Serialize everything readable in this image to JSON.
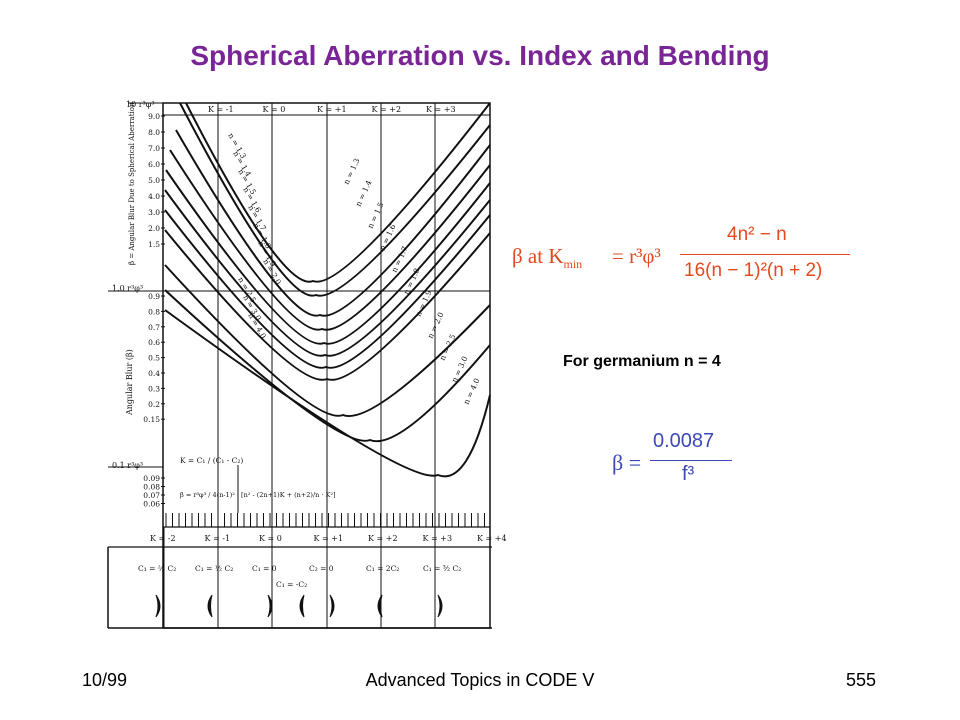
{
  "slide": {
    "title": "Spherical Aberration vs. Index and Bending",
    "footer_left": "10/99",
    "footer_center": "Advanced Topics in CODE V",
    "footer_right": "555",
    "note": "For germanium n = 4"
  },
  "figure": {
    "k_top": [
      "K = -1",
      "K = 0",
      "K = +1",
      "K = +2",
      "K = +3"
    ],
    "k_bottom": [
      "K = -2",
      "K = -1",
      "K = 0",
      "K = +1",
      "K = +2",
      "K = +3",
      "K = +4"
    ],
    "y_ticks_top": [
      "9.0",
      "8.0",
      "7.0",
      "6.0",
      "5.0",
      "4.0",
      "3.0",
      "2.0",
      "1.5"
    ],
    "y_ticks_mid": [
      "0.9",
      "0.8",
      "0.7",
      "0.6",
      "0.5",
      "0.4",
      "0.3",
      "0.2",
      "0.15"
    ],
    "y_ticks_low": [
      "0.09",
      "0.08",
      "0.07",
      "0.06"
    ],
    "decade_top": "10 r³φ³",
    "decade_mid": "1.0  r³φ³",
    "decade_low": "0.1  r³φ³",
    "axis_title": "Angular Blur (β)",
    "axis_caption": "β = Angular Blur Due to Spherical Aberration",
    "left_labels": [
      "n = 1.3",
      "n = 1.4",
      "n = 1.5",
      "n = 1.6",
      "n = 1.7",
      "n = 1.8",
      "n = 1.9",
      "n = 2.0",
      "n = 2.5",
      "n = 3.0",
      "n = 4.0"
    ],
    "right_labels": [
      "n = 1.3",
      "n = 1.4",
      "n = 1.5",
      "n = 1.6",
      "n = 1.7",
      "n = 1.8",
      "n = 1.9",
      "n = 2.0",
      "n = 2.5",
      "n = 3.0",
      "n = 4.0"
    ],
    "c_labels": [
      "C₁ = ⅔ C₂",
      "C₁ = ½ C₂",
      "C₁ = 0",
      "C₂ = 0",
      "C₁ = 2C₂",
      "C₁ = ³⁄₂ C₂"
    ],
    "c_center": "C₁ = -C₂",
    "inset_k": "K = C₁ / (C₁ - C₂)",
    "inset_beta": "β = r³φ³ / 4(n-1)² · [n² - (2n+1)K + (n+2)/n · K²]"
  },
  "equation1": {
    "lhs": "β at K",
    "sub": "min",
    "eq": "= r³φ³",
    "num": "4n² − n",
    "den": "16(n − 1)²(n + 2)"
  },
  "equation2": {
    "lhs": "β =",
    "num": "0.0087",
    "den": "f³"
  }
}
